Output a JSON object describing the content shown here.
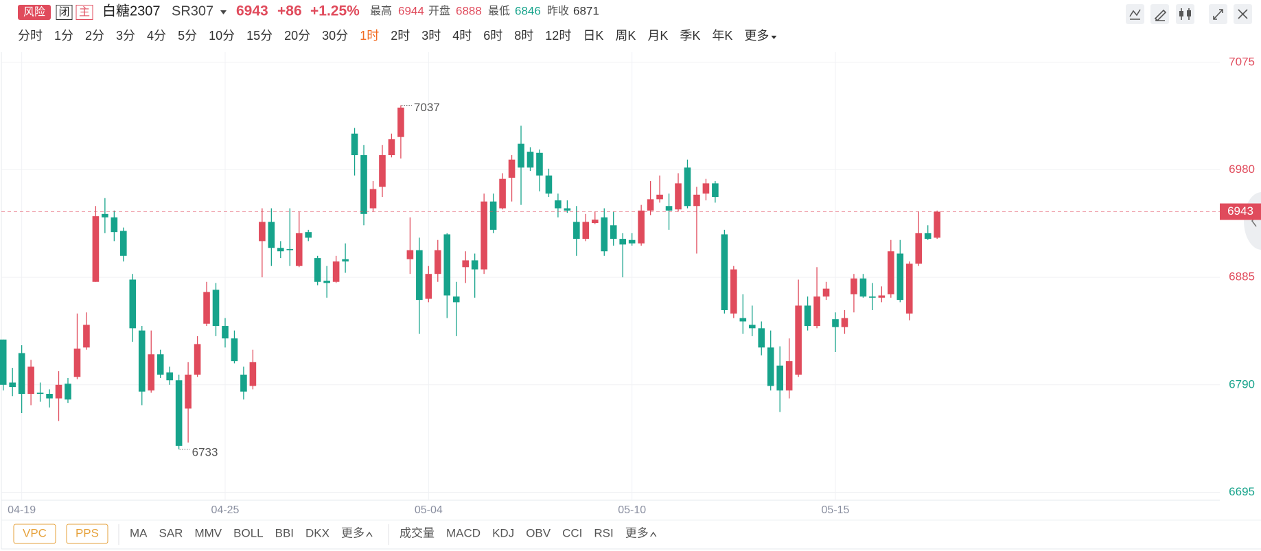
{
  "header": {
    "risk": "风险",
    "closed": "闭",
    "main": "主",
    "name": "白糖2307",
    "code": "SR307",
    "last": 6943,
    "change": "+86",
    "change_pct": "+1.25%",
    "stats": [
      {
        "label": "最高",
        "value": 6944
      },
      {
        "label": "开盘",
        "value": 6888
      },
      {
        "label": "最低",
        "value": 6846
      }
    ],
    "prev_close": {
      "label": "昨收",
      "value": 6871
    }
  },
  "timeframes": [
    "分时",
    "1分",
    "2分",
    "3分",
    "4分",
    "5分",
    "10分",
    "15分",
    "20分",
    "30分",
    "1时",
    "2时",
    "3时",
    "4时",
    "6时",
    "8时",
    "12时",
    "日K",
    "周K",
    "月K",
    "季K",
    "年K",
    "更多"
  ],
  "active_timeframe": 10,
  "indicators_main": [
    "VPC",
    "PPS"
  ],
  "indicators_overlay": [
    "MA",
    "SAR",
    "MMV",
    "BOLL",
    "BBI",
    "DKX",
    "更多"
  ],
  "indicators_sub": [
    "成交量",
    "MACD",
    "KDJ",
    "OBV",
    "CCI",
    "RSI",
    "更多"
  ],
  "chart_data": {
    "type": "candlestick",
    "categories": [
      null,
      null,
      "04-19",
      null,
      null,
      null,
      null,
      null,
      null,
      null,
      null,
      null,
      null,
      null,
      null,
      null,
      null,
      null,
      null,
      null,
      null,
      null,
      null,
      null,
      "04-25",
      null,
      null,
      null,
      null,
      null,
      null,
      null,
      null,
      null,
      null,
      null,
      null,
      null,
      null,
      null,
      null,
      null,
      null,
      null,
      null,
      null,
      "05-04",
      null,
      null,
      null,
      null,
      null,
      null,
      null,
      null,
      null,
      null,
      null,
      null,
      null,
      null,
      null,
      null,
      null,
      null,
      null,
      null,
      null,
      "05-10",
      null,
      null,
      null,
      null,
      null,
      null,
      null,
      null,
      null,
      null,
      null,
      null,
      null,
      null,
      null,
      null,
      null,
      null,
      null,
      null,
      null,
      "05-15",
      null,
      null,
      null,
      null,
      null,
      null,
      null,
      null,
      null,
      null,
      null
    ],
    "open": [
      6830,
      6792,
      6818,
      6782,
      6783,
      6782,
      6778,
      6791,
      6797,
      6823,
      6881,
      6941,
      6938,
      6926,
      6883,
      6838,
      6785,
      6817,
      6801,
      6794,
      6769,
      6799,
      6844,
      6874,
      6842,
      6831,
      6799,
      6789,
      6917,
      6934,
      6911,
      6910,
      6895,
      6925,
      6902,
      6882,
      6881,
      6901,
      7012,
      6993,
      6946,
      6965,
      6993,
      7009,
      6901,
      6909,
      6866,
      6888,
      6923,
      6868,
      6894,
      6900,
      6892,
      6952,
      6946,
      6973,
      7003,
      6996,
      6995,
      6975,
      6953,
      6946,
      6934,
      6919,
      6933,
      6938,
      6931,
      6919,
      6918,
      6915,
      6944,
      6954,
      6948,
      6945,
      6982,
      6948,
      6959,
      6968,
      6923,
      6853,
      6849,
      6843,
      6840,
      6823,
      6807,
      6785,
      6799,
      6860,
      6842,
      6868,
      6848,
      6841,
      6870,
      6884,
      6868,
      6867,
      6870,
      6906,
      6853,
      6897,
      6924,
      6920
    ],
    "close": [
      6790,
      6788,
      6782,
      6806,
      6782,
      6778,
      6790,
      6777,
      6822,
      6843,
      6939,
      6938,
      6925,
      6904,
      6840,
      6784,
      6817,
      6799,
      6794,
      6736,
      6799,
      6826,
      6872,
      6842,
      6831,
      6811,
      6784,
      6810,
      6934,
      6911,
      6908,
      6909,
      6924,
      6920,
      6881,
      6880,
      6899,
      6899,
      6993,
      6941,
      6963,
      6993,
      7007,
      7035,
      6909,
      6865,
      6888,
      6909,
      6869,
      6863,
      6900,
      6892,
      6952,
      6927,
      6972,
      6989,
      6982,
      6982,
      6975,
      6959,
      6946,
      6944,
      6919,
      6934,
      6936,
      6908,
      6919,
      6914,
      6915,
      6944,
      6954,
      6958,
      6944,
      6968,
      6948,
      6958,
      6968,
      6956,
      6856,
      6892,
      6846,
      6840,
      6823,
      6789,
      6785,
      6811,
      6860,
      6842,
      6868,
      6875,
      6841,
      6849,
      6884,
      6868,
      6867,
      6869,
      6908,
      6865,
      6897,
      6924,
      6919,
      6943
    ],
    "high": [
      6830,
      6805,
      6825,
      6812,
      6792,
      6786,
      6802,
      6796,
      6853,
      6854,
      6948,
      6955,
      6944,
      6929,
      6888,
      6842,
      6838,
      6821,
      6806,
      6799,
      6810,
      6833,
      6881,
      6880,
      6849,
      6838,
      6806,
      6821,
      6946,
      6946,
      6917,
      6946,
      6943,
      6927,
      6904,
      6895,
      6904,
      6915,
      7017,
      7002,
      6970,
      7002,
      7012,
      7037,
      6938,
      6920,
      6895,
      6918,
      6924,
      6881,
      6908,
      6906,
      6959,
      6959,
      6977,
      6993,
      7019,
      7000,
      6998,
      6981,
      6959,
      6953,
      6948,
      6941,
      6943,
      6946,
      6943,
      6924,
      6924,
      6949,
      6970,
      6975,
      6959,
      6977,
      6989,
      6965,
      6972,
      6970,
      6927,
      6895,
      6870,
      6860,
      6846,
      6838,
      6824,
      6831,
      6883,
      6868,
      6894,
      6881,
      6854,
      6856,
      6888,
      6888,
      6880,
      6877,
      6918,
      6918,
      6899,
      6943,
      6931,
      6944
    ],
    "low": [
      6785,
      6780,
      6765,
      6772,
      6775,
      6770,
      6758,
      6774,
      6795,
      6821,
      6881,
      6924,
      6917,
      6899,
      6828,
      6772,
      6783,
      6796,
      6790,
      6733,
      6739,
      6797,
      6842,
      6833,
      6823,
      6809,
      6777,
      6786,
      6885,
      6895,
      6902,
      6895,
      6894,
      6917,
      6878,
      6867,
      6880,
      6889,
      6975,
      6931,
      6943,
      6956,
      6991,
      6990,
      6888,
      6835,
      6863,
      6881,
      6849,
      6833,
      6880,
      6867,
      6888,
      6924,
      6945,
      6952,
      6949,
      6979,
      6961,
      6956,
      6938,
      6942,
      6904,
      6917,
      6932,
      6904,
      6913,
      6885,
      6913,
      6913,
      6940,
      6951,
      6927,
      6943,
      6946,
      6906,
      6953,
      6951,
      6853,
      6849,
      6835,
      6833,
      6816,
      6785,
      6766,
      6778,
      6797,
      6838,
      6840,
      6865,
      6819,
      6835,
      6854,
      6867,
      6856,
      6863,
      6867,
      6863,
      6847,
      6895,
      6918,
      6919
    ],
    "up_color": "#e04b5c",
    "down_color": "#16a38b",
    "ylim": [
      6688,
      7084
    ],
    "yticks": [
      6695,
      6790,
      6885,
      6980,
      7075
    ],
    "grid": true,
    "last_price": 6943
  }
}
